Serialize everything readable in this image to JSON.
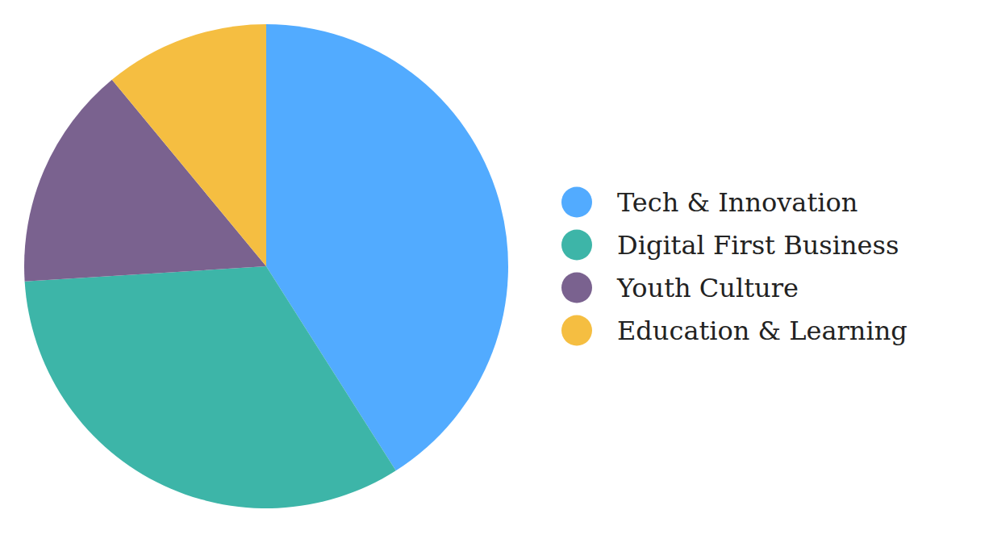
{
  "chart_data": {
    "type": "pie",
    "categories": [
      "Tech & Innovation",
      "Digital First Business",
      "Youth Culture",
      "Education & Learning"
    ],
    "values": [
      41,
      33,
      15,
      11
    ],
    "colors": [
      "#52abff",
      "#3db5a8",
      "#7a628f",
      "#f5be41"
    ],
    "legend": "right"
  }
}
